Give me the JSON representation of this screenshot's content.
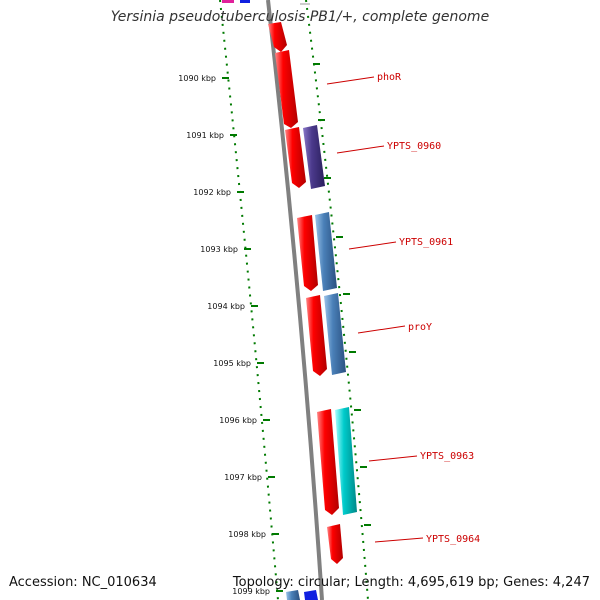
{
  "title": "Yersinia pseudotuberculosis PB1/+, complete genome",
  "accession": "Accession: NC_010634",
  "summary": "Topology: circular; Length: 4,695,619 bp; Genes: 4,247",
  "ticks": [
    "1090 kbp",
    "1091 kbp",
    "1092 kbp",
    "1093 kbp",
    "1094 kbp",
    "1095 kbp",
    "1096 kbp",
    "1097 kbp",
    "1098 kbp",
    "1099 kbp"
  ],
  "genes": [
    {
      "name": "phoR"
    },
    {
      "name": "YPTS_0960"
    },
    {
      "name": "YPTS_0961"
    },
    {
      "name": "proY"
    },
    {
      "name": "YPTS_0963"
    },
    {
      "name": "YPTS_0964"
    }
  ],
  "colors": {
    "red": "#ff0000",
    "purple": "#4b3a8c",
    "steel": "#4a80b8",
    "cyan": "#00cccc",
    "magenta": "#e0209a",
    "blue": "#1020e0",
    "tick": "#007a00",
    "axis": "#808080",
    "label": "#cc0000"
  }
}
